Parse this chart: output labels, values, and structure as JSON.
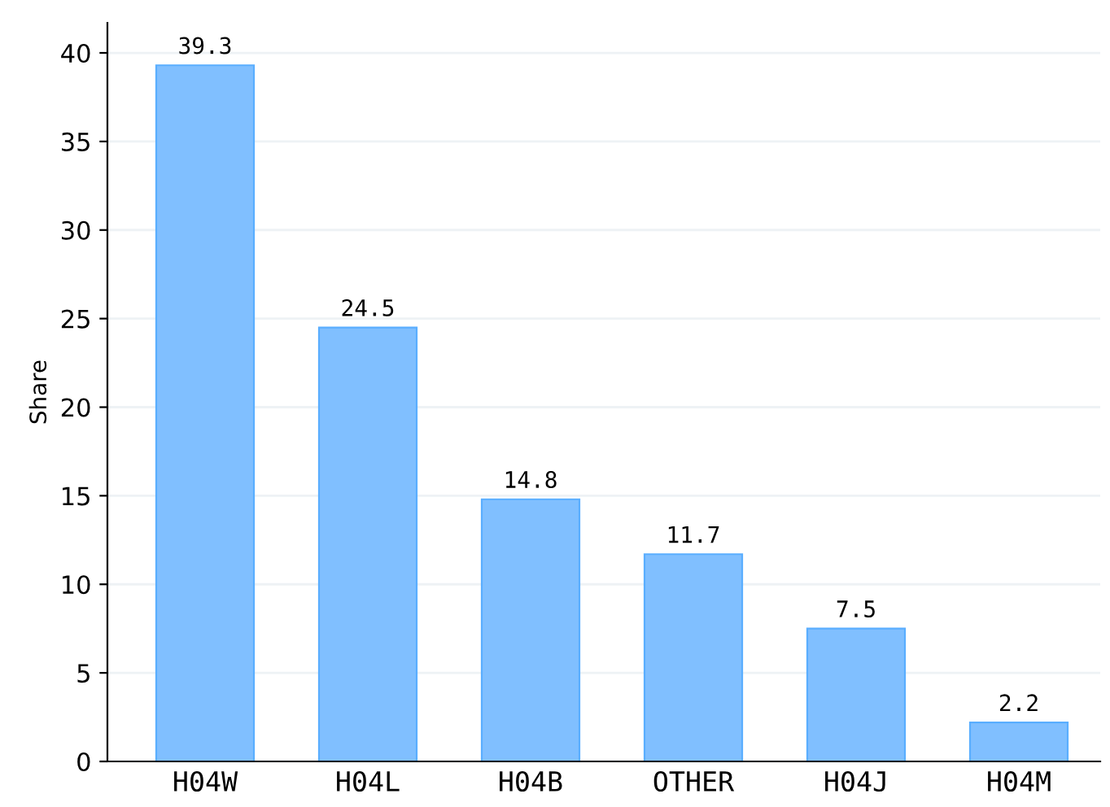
{
  "chart_data": {
    "type": "bar",
    "ylabel": "Share",
    "categories": [
      "H04W",
      "H04L",
      "H04B",
      "OTHER",
      "H04J",
      "H04M"
    ],
    "values": [
      39.3,
      24.5,
      14.8,
      11.7,
      7.5,
      2.2
    ],
    "color": "#80bfff",
    "ylim": [
      0,
      41.7
    ],
    "yticks": [
      0,
      5,
      10,
      15,
      20,
      25,
      30,
      35,
      40
    ],
    "grid": "y",
    "data_labels": true
  }
}
